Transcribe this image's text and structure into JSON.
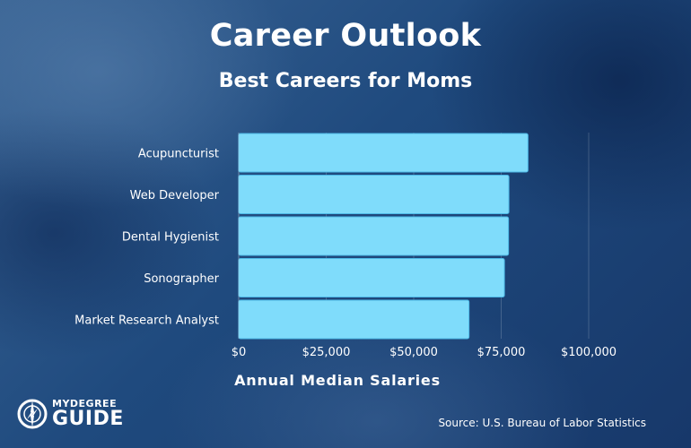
{
  "header": {
    "title": "Career Outlook",
    "subtitle": "Best Careers for Moms"
  },
  "footer": {
    "logo_top": "MYDEGREE",
    "logo_bottom": "GUIDE",
    "source": "Source: U.S. Bureau of Labor Statistics"
  },
  "colors": {
    "bar": "#7fdcfb",
    "bar_stroke": "#4cb8e6",
    "text": "#ffffff",
    "gridline": "rgba(255,255,255,0.18)"
  },
  "chart_data": {
    "type": "bar",
    "orientation": "horizontal",
    "title": "Career Outlook",
    "subtitle": "Best Careers for Moms",
    "xlabel": "Annual Median Salaries",
    "ylabel": "",
    "categories": [
      "Acupuncturist",
      "Web Developer",
      "Dental Hygienist",
      "Sonographer",
      "Market Research Analyst"
    ],
    "values": [
      82650,
      77200,
      77090,
      75920,
      65810
    ],
    "xlim": [
      0,
      100000
    ],
    "xticks": [
      0,
      25000,
      50000,
      75000,
      100000
    ],
    "xtick_labels": [
      "$0",
      "$25,000",
      "$50,000",
      "$75,000",
      "$100,000"
    ],
    "grid": true,
    "legend": false
  }
}
